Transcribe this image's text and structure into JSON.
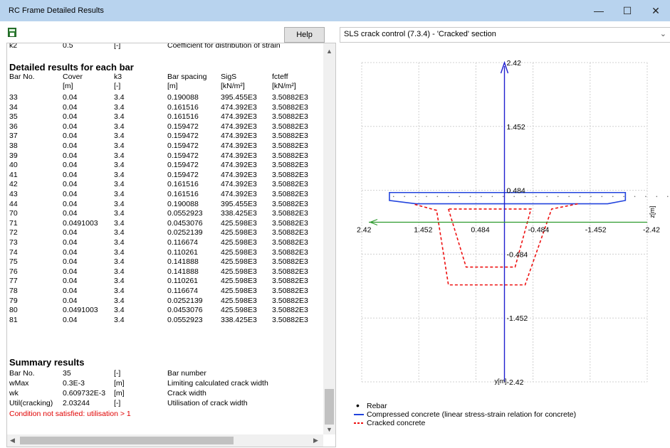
{
  "window": {
    "title": "RC Frame Detailed Results"
  },
  "toolbar": {
    "help_label": "Help",
    "section_select": "SLS crack control (7.3.4) - 'Cracked' section"
  },
  "top_row": {
    "name": "k2",
    "value": "0.5",
    "unit": "[-]",
    "description": "Coefficient for distribution of strain"
  },
  "detailed": {
    "heading": "Detailed results for each bar",
    "headers": [
      "Bar No.",
      "Cover",
      "k3",
      "Bar spacing",
      "SigS",
      "fcteff"
    ],
    "units": [
      "",
      "[m]",
      "[-]",
      "[m]",
      "[kN/m²]",
      "[kN/m²]"
    ],
    "rows": [
      [
        "33",
        "0.04",
        "3.4",
        "0.190088",
        "395.455E3",
        "3.50882E3"
      ],
      [
        "34",
        "0.04",
        "3.4",
        "0.161516",
        "474.392E3",
        "3.50882E3"
      ],
      [
        "35",
        "0.04",
        "3.4",
        "0.161516",
        "474.392E3",
        "3.50882E3"
      ],
      [
        "36",
        "0.04",
        "3.4",
        "0.159472",
        "474.392E3",
        "3.50882E3"
      ],
      [
        "37",
        "0.04",
        "3.4",
        "0.159472",
        "474.392E3",
        "3.50882E3"
      ],
      [
        "38",
        "0.04",
        "3.4",
        "0.159472",
        "474.392E3",
        "3.50882E3"
      ],
      [
        "39",
        "0.04",
        "3.4",
        "0.159472",
        "474.392E3",
        "3.50882E3"
      ],
      [
        "40",
        "0.04",
        "3.4",
        "0.159472",
        "474.392E3",
        "3.50882E3"
      ],
      [
        "41",
        "0.04",
        "3.4",
        "0.159472",
        "474.392E3",
        "3.50882E3"
      ],
      [
        "42",
        "0.04",
        "3.4",
        "0.161516",
        "474.392E3",
        "3.50882E3"
      ],
      [
        "43",
        "0.04",
        "3.4",
        "0.161516",
        "474.392E3",
        "3.50882E3"
      ],
      [
        "44",
        "0.04",
        "3.4",
        "0.190088",
        "395.455E3",
        "3.50882E3"
      ],
      [
        "70",
        "0.04",
        "3.4",
        "0.0552923",
        "338.425E3",
        "3.50882E3"
      ],
      [
        "71",
        "0.0491003",
        "3.4",
        "0.0453076",
        "425.598E3",
        "3.50882E3"
      ],
      [
        "72",
        "0.04",
        "3.4",
        "0.0252139",
        "425.598E3",
        "3.50882E3"
      ],
      [
        "73",
        "0.04",
        "3.4",
        "0.116674",
        "425.598E3",
        "3.50882E3"
      ],
      [
        "74",
        "0.04",
        "3.4",
        "0.110261",
        "425.598E3",
        "3.50882E3"
      ],
      [
        "75",
        "0.04",
        "3.4",
        "0.141888",
        "425.598E3",
        "3.50882E3"
      ],
      [
        "76",
        "0.04",
        "3.4",
        "0.141888",
        "425.598E3",
        "3.50882E3"
      ],
      [
        "77",
        "0.04",
        "3.4",
        "0.110261",
        "425.598E3",
        "3.50882E3"
      ],
      [
        "78",
        "0.04",
        "3.4",
        "0.116674",
        "425.598E3",
        "3.50882E3"
      ],
      [
        "79",
        "0.04",
        "3.4",
        "0.0252139",
        "425.598E3",
        "3.50882E3"
      ],
      [
        "80",
        "0.0491003",
        "3.4",
        "0.0453076",
        "425.598E3",
        "3.50882E3"
      ],
      [
        "81",
        "0.04",
        "3.4",
        "0.0552923",
        "338.425E3",
        "3.50882E3"
      ]
    ]
  },
  "summary": {
    "heading": "Summary results",
    "rows": [
      [
        "Bar No.",
        "35",
        "[-]",
        "Bar number"
      ],
      [
        "wMax",
        "0.3E-3",
        "[m]",
        "Limiting calculated crack width"
      ],
      [
        "wk",
        "0.609732E-3",
        "[m]",
        "Crack width"
      ],
      [
        "Util(cracking)",
        "2.03244",
        "[-]",
        "Utilisation of crack width"
      ]
    ],
    "warning": "Condition not satisfied: utilisation > 1"
  },
  "plot": {
    "x_ticks": [
      "2.42",
      "1.452",
      "0.484",
      "-0.484",
      "-1.452",
      "-2.42"
    ],
    "y_ticks": [
      "2.42",
      "1.452",
      "0.484",
      "-0.484",
      "-1.452",
      "-2.42"
    ],
    "x_axis_label": "z[m]",
    "y_axis_label": "y[m]",
    "colors": {
      "compressed": "#2244dd",
      "cracked": "#ee1111",
      "axis_y": "#1f1fcf",
      "axis_x": "#2e9a2e",
      "grid": "#d0d0d0"
    }
  },
  "legend": {
    "rebar": "Rebar",
    "compressed": "Compressed concrete (linear stress-strain relation for concrete)",
    "cracked": "Cracked concrete"
  }
}
